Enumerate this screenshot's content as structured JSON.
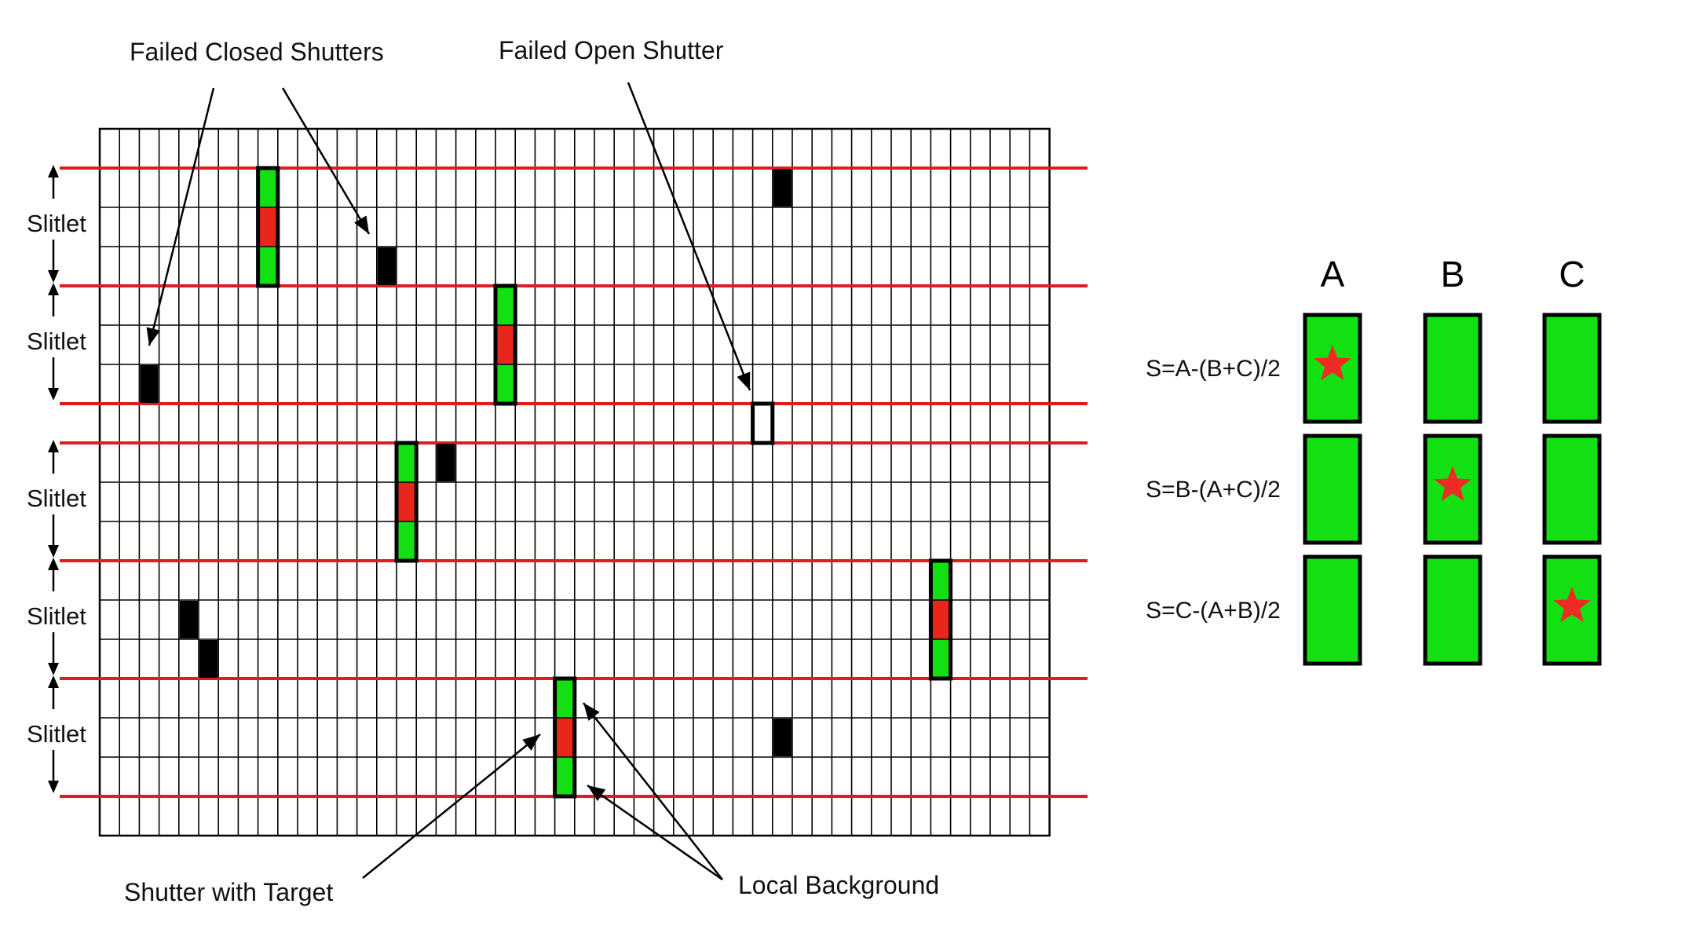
{
  "labels": {
    "failed_closed": "Failed Closed Shutters",
    "failed_open": "Failed Open Shutter",
    "shutter_with_target": "Shutter with Target",
    "local_background": "Local Background",
    "slitlet": "Slitlet"
  },
  "grid": {
    "columns": 48,
    "rows": 18
  },
  "slitlets": [
    {
      "label": "Slitlet",
      "rows": [
        1,
        3
      ]
    },
    {
      "label": "Slitlet",
      "rows": [
        4,
        6
      ]
    },
    {
      "label": "Slitlet",
      "rows": [
        8,
        10
      ]
    },
    {
      "label": "Slitlet",
      "rows": [
        11,
        13
      ]
    },
    {
      "label": "Slitlet",
      "rows": [
        14,
        16
      ]
    }
  ],
  "target_shutters": [
    {
      "col": 8,
      "row": 1
    },
    {
      "col": 20,
      "row": 4
    },
    {
      "col": 15,
      "row": 8
    },
    {
      "col": 42,
      "row": 11
    },
    {
      "col": 23,
      "row": 14
    }
  ],
  "failed_closed_shutters": [
    {
      "col": 34,
      "row": 1
    },
    {
      "col": 14,
      "row": 3
    },
    {
      "col": 2,
      "row": 6
    },
    {
      "col": 17,
      "row": 8
    },
    {
      "col": 4,
      "row": 12
    },
    {
      "col": 5,
      "row": 13
    },
    {
      "col": 34,
      "row": 15
    }
  ],
  "failed_open_shutters": [
    {
      "col": 33,
      "row": 7
    }
  ],
  "nod_panel": {
    "columns": [
      "A",
      "B",
      "C"
    ],
    "equations": [
      "S=A-(B+C)/2",
      "S=B-(A+C)/2",
      "S=C-(A+B)/2"
    ],
    "star_positions": [
      0,
      1,
      2
    ]
  },
  "colors": {
    "slit_line": "#e11b22",
    "shutter_open": "#13e013",
    "target": "#e8261b",
    "failed_closed": "#000000",
    "star": "#ee2b24",
    "grid": "#000000"
  }
}
